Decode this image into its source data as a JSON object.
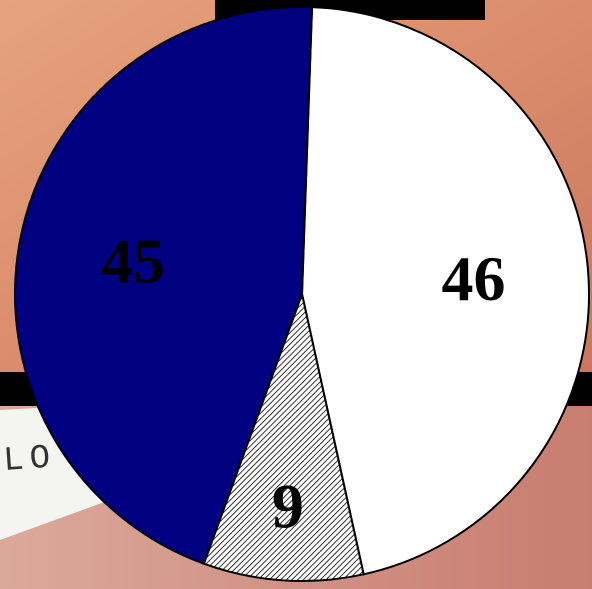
{
  "background": {
    "top_photo_color": "#d98a6a",
    "bottom_photo_color": "#d9a79a",
    "paper_color": "#f4f4f0",
    "frame_color": "#000000",
    "paper_text": "LO"
  },
  "chart_data": {
    "type": "pie",
    "title": "",
    "start_angle_deg": 2,
    "slices": [
      {
        "label": "46",
        "value": 46,
        "color": "#ffffff",
        "pattern": "none"
      },
      {
        "label": "9",
        "value": 9,
        "color": "#ffffff",
        "pattern": "diagonal-hatch"
      },
      {
        "label": "45",
        "value": 45,
        "color": "#000080",
        "pattern": "none"
      }
    ]
  }
}
